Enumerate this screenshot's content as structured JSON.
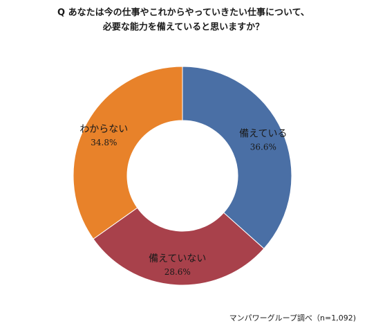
{
  "chart_data": {
    "type": "pie",
    "style": "donut",
    "title_lines": [
      "Q あなたは今の仕事やこれからやっていきたい仕事について、",
      "必要な能力を備えていると思いますか？"
    ],
    "categories": [
      "備えている",
      "備えていない",
      "わからない"
    ],
    "values": [
      36.6,
      28.6,
      34.8
    ],
    "value_labels": [
      "36.6%",
      "28.6%",
      "34.8%"
    ],
    "colors": [
      "#4a6fa5",
      "#a8414b",
      "#e8822a"
    ],
    "legend": "none",
    "source_note": "マンパワーグループ調べ（n=1,092)"
  }
}
